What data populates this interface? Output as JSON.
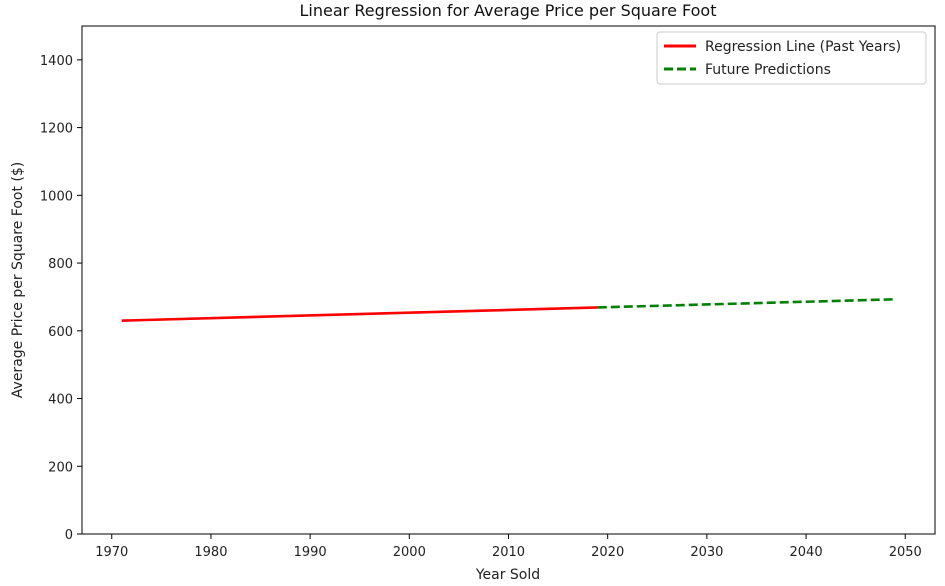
{
  "chart_data": {
    "type": "line",
    "title": "Linear Regression for Average Price per Square Foot",
    "xlabel": "Year Sold",
    "ylabel": "Average Price per Square Foot ($)",
    "xlim": [
      1967,
      2053
    ],
    "ylim": [
      0,
      1500
    ],
    "xticks": [
      1970,
      1980,
      1990,
      2000,
      2010,
      2020,
      2030,
      2040,
      2050
    ],
    "yticks": [
      0,
      200,
      400,
      600,
      800,
      1000,
      1200,
      1400
    ],
    "grid": false,
    "legend_position": "top-right",
    "series": [
      {
        "name": "Regression Line (Past Years)",
        "color": "#ff0000",
        "style": "solid",
        "x": [
          1971,
          2019
        ],
        "y": [
          630,
          669
        ]
      },
      {
        "name": "Future Predictions",
        "color": "#008000",
        "style": "dashed",
        "x": [
          2019,
          2049
        ],
        "y": [
          669,
          693
        ]
      }
    ]
  }
}
